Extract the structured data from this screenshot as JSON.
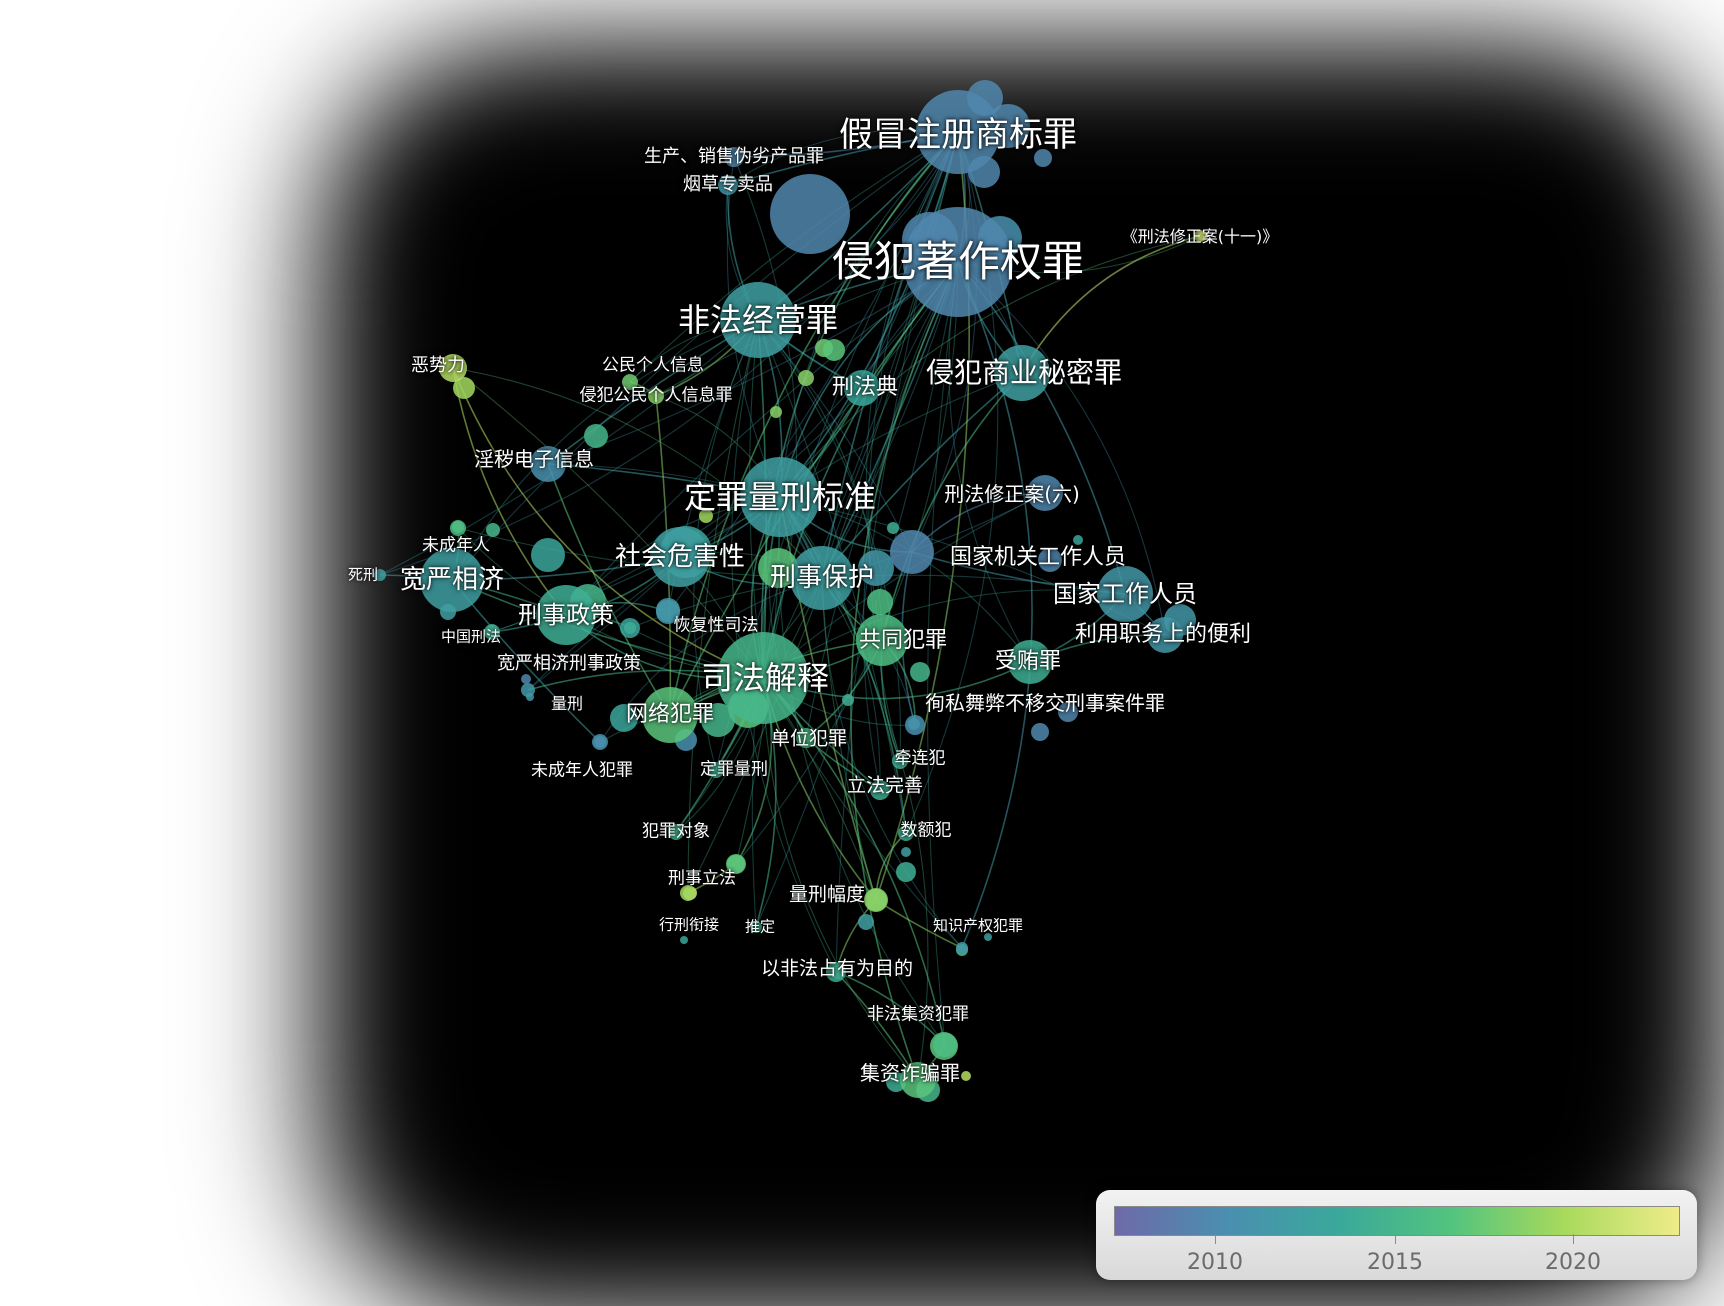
{
  "nodes": [
    {
      "id": "jiamao",
      "label": "假冒注册商标罪",
      "year": 2008,
      "r": 42
    },
    {
      "id": "zuozuoquan",
      "label": "侵犯著作权罪",
      "year": 2008,
      "r": 55
    },
    {
      "id": "feifajingying",
      "label": "非法经营罪",
      "year": 2011,
      "r": 38
    },
    {
      "id": "shangyemimi",
      "label": "侵犯商业秘密罪",
      "year": 2011,
      "r": 28
    },
    {
      "id": "dingzuiliangxing",
      "label": "定罪量刑标准",
      "year": 2011,
      "r": 40
    },
    {
      "id": "sifajieshi",
      "label": "司法解释",
      "year": 2014,
      "r": 46
    },
    {
      "id": "xingshibaohu",
      "label": "刑事保护",
      "year": 2011,
      "r": 32
    },
    {
      "id": "shehuiweihai",
      "label": "社会危害性",
      "year": 2011,
      "r": 30
    },
    {
      "id": "kuanyanxiangji",
      "label": "宽严相济",
      "year": 2011,
      "r": 32
    },
    {
      "id": "xingshizhengce",
      "label": "刑事政策",
      "year": 2013,
      "r": 30
    },
    {
      "id": "wangluofanzui",
      "label": "网络犯罪",
      "year": 2016,
      "r": 28
    },
    {
      "id": "gongtongfanzui",
      "label": "共同犯罪",
      "year": 2015,
      "r": 26
    },
    {
      "id": "shouhuizui",
      "label": "受贿罪",
      "year": 2013,
      "r": 22
    },
    {
      "id": "guojiagongzuo",
      "label": "国家工作人员",
      "year": 2010,
      "r": 28
    },
    {
      "id": "guojiajiguan",
      "label": "国家机关工作人员",
      "year": 2008,
      "r": 22
    },
    {
      "id": "liyongzhiwu",
      "label": "利用职务上的便利",
      "year": 2010,
      "r": 18
    },
    {
      "id": "xingfaxiuzheng6",
      "label": "刑法修正案(六)",
      "year": 2008,
      "r": 18
    },
    {
      "id": "xingfadian",
      "label": "刑法典",
      "year": 2012,
      "r": 18
    },
    {
      "id": "yinhui",
      "label": "淫秽电子信息",
      "year": 2009,
      "r": 18
    },
    {
      "id": "eshili",
      "label": "恶势力",
      "year": 2020,
      "r": 14
    },
    {
      "id": "gongmingeren",
      "label": "公民个人信息",
      "year": 2017,
      "r": 8
    },
    {
      "id": "qinfangeren",
      "label": "侵犯公民个人信息罪",
      "year": 2018,
      "r": 8
    },
    {
      "id": "shengchanxiaoshou",
      "label": "生产、销售伪劣产品罪",
      "year": 2008,
      "r": 10
    },
    {
      "id": "yancao",
      "label": "烟草专卖品",
      "year": 2010,
      "r": 10
    },
    {
      "id": "xiuzheng11",
      "label": "《刑法修正案(十一)》",
      "year": 2021,
      "r": 6
    },
    {
      "id": "weichengnianren",
      "label": "未成年人",
      "year": 2015,
      "r": 8
    },
    {
      "id": "sixing",
      "label": "死刑",
      "year": 2011,
      "r": 6
    },
    {
      "id": "zhongguoxingfa",
      "label": "中国刑法",
      "year": 2013,
      "r": 8
    },
    {
      "id": "kuanyanzhengce",
      "label": "宽严相济刑事政策",
      "year": 2012,
      "r": 10
    },
    {
      "id": "huifuxing",
      "label": "恢复性司法",
      "year": 2010,
      "r": 12
    },
    {
      "id": "liangxing",
      "label": "量刑",
      "year": 2010,
      "r": 7
    },
    {
      "id": "weichengnianfanzui",
      "label": "未成年人犯罪",
      "year": 2009,
      "r": 8
    },
    {
      "id": "dingzuiliangxing2",
      "label": "定罪量刑",
      "year": 2013,
      "r": 8
    },
    {
      "id": "danweifanzui",
      "label": "单位犯罪",
      "year": 2015,
      "r": 10
    },
    {
      "id": "xunsi",
      "label": "徇私舞弊不移交刑事案件罪",
      "year": 2009,
      "r": 10
    },
    {
      "id": "qianlianfan",
      "label": "牵连犯",
      "year": 2013,
      "r": 8
    },
    {
      "id": "lifawanshan",
      "label": "立法完善",
      "year": 2013,
      "r": 10
    },
    {
      "id": "fanzuiduixiang",
      "label": "犯罪对象",
      "year": 2014,
      "r": 8
    },
    {
      "id": "shuefan",
      "label": "数额犯",
      "year": 2013,
      "r": 8
    },
    {
      "id": "xingshilifa",
      "label": "刑事立法",
      "year": 2016,
      "r": 10
    },
    {
      "id": "liangxingfudu",
      "label": "量刑幅度",
      "year": 2018,
      "r": 12
    },
    {
      "id": "xingxingxianjie",
      "label": "行刑衔接",
      "year": 2019,
      "r": 8
    },
    {
      "id": "tuiding",
      "label": "推定",
      "year": 2013,
      "r": 6
    },
    {
      "id": "zhishichanquan",
      "label": "知识产权犯罪",
      "year": 2010,
      "r": 6
    },
    {
      "id": "yifeifa",
      "label": "以非法占有为目的",
      "year": 2013,
      "r": 10
    },
    {
      "id": "feifajizi",
      "label": "非法集资犯罪",
      "year": 2015,
      "r": 12
    },
    {
      "id": "jizizhapian",
      "label": "集资诈骗罪",
      "year": 2016,
      "r": 18
    }
  ],
  "edges": [
    [
      "jiamao",
      "zuozuoquan"
    ],
    [
      "jiamao",
      "feifajingying"
    ],
    [
      "zuozuoquan",
      "feifajingying"
    ],
    [
      "zuozuoquan",
      "shangyemimi"
    ],
    [
      "zuozuoquan",
      "dingzuiliangxing"
    ],
    [
      "jiamao",
      "dingzuiliangxing"
    ],
    [
      "zuozuoquan",
      "xingshibaohu"
    ],
    [
      "jiamao",
      "xingshibaohu"
    ],
    [
      "zuozuoquan",
      "sifajieshi"
    ],
    [
      "jiamao",
      "sifajieshi"
    ],
    [
      "feifajingying",
      "dingzuiliangxing"
    ],
    [
      "feifajingying",
      "sifajieshi"
    ],
    [
      "shangyemimi",
      "xingshibaohu"
    ],
    [
      "shangyemimi",
      "gongtongfanzui"
    ],
    [
      "dingzuiliangxing",
      "sifajieshi"
    ],
    [
      "dingzuiliangxing",
      "shehuiweihai"
    ],
    [
      "dingzuiliangxing",
      "xingshibaohu"
    ],
    [
      "sifajieshi",
      "wangluofanzui"
    ],
    [
      "sifajieshi",
      "gongtongfanzui"
    ],
    [
      "sifajieshi",
      "shouhuizui"
    ],
    [
      "sifajieshi",
      "danweifanzui"
    ],
    [
      "kuanyanxiangji",
      "xingshizhengce"
    ],
    [
      "kuanyanxiangji",
      "shehuiweihai"
    ],
    [
      "xingshizhengce",
      "shehuiweihai"
    ],
    [
      "xingshizhengce",
      "sifajieshi"
    ],
    [
      "guojiagongzuo",
      "shouhuizui"
    ],
    [
      "guojiagongzuo",
      "liyongzhiwu"
    ],
    [
      "guojiajiguan",
      "guojiagongzuo"
    ],
    [
      "guojiajiguan",
      "xunsi"
    ],
    [
      "xingfaxiuzheng6",
      "guojiajiguan"
    ],
    [
      "xingfadian",
      "dingzuiliangxing"
    ],
    [
      "yinhui",
      "dingzuiliangxing"
    ],
    [
      "yinhui",
      "wangluofanzui"
    ],
    [
      "eshili",
      "xingshizhengce"
    ],
    [
      "eshili",
      "sifajieshi"
    ],
    [
      "gongmingeren",
      "qinfangeren"
    ],
    [
      "qinfangeren",
      "wangluofanzui"
    ],
    [
      "shengchanxiaoshou",
      "jiamao"
    ],
    [
      "yancao",
      "feifajingying"
    ],
    [
      "xiuzheng11",
      "shangyemimi"
    ],
    [
      "weichengnianren",
      "kuanyanxiangji"
    ],
    [
      "sixing",
      "kuanyanxiangji"
    ],
    [
      "zhongguoxingfa",
      "xingshizhengce"
    ],
    [
      "kuanyanzhengce",
      "xingshizhengce"
    ],
    [
      "huifuxing",
      "xingshizhengce"
    ],
    [
      "liangxing",
      "sifajieshi"
    ],
    [
      "weichengnianfanzui",
      "kuanyanxiangji"
    ],
    [
      "dingzuiliangxing2",
      "sifajieshi"
    ],
    [
      "danweifanzui",
      "gongtongfanzui"
    ],
    [
      "xunsi",
      "gongtongfanzui"
    ],
    [
      "qianlianfan",
      "gongtongfanzui"
    ],
    [
      "lifawanshan",
      "sifajieshi"
    ],
    [
      "fanzuiduixiang",
      "sifajieshi"
    ],
    [
      "shuefan",
      "dingzuiliangxing"
    ],
    [
      "xingshilifa",
      "sifajieshi"
    ],
    [
      "liangxingfudu",
      "sifajieshi"
    ],
    [
      "liangxingfudu",
      "dingzuiliangxing"
    ],
    [
      "xingxingxianjie",
      "xingshilifa"
    ],
    [
      "tuiding",
      "sifajieshi"
    ],
    [
      "zhishichanquan",
      "zuozuoquan"
    ],
    [
      "yifeifa",
      "feifajizi"
    ],
    [
      "feifajizi",
      "jizizhapian"
    ],
    [
      "jizizhapian",
      "yifeifa"
    ],
    [
      "liangxingfudu",
      "yifeifa"
    ],
    [
      "shuefan",
      "liangxingfudu"
    ],
    [
      "zuozuoquan",
      "guojiagongzuo"
    ],
    [
      "jiamao",
      "shangyemimi"
    ],
    [
      "feifajingying",
      "xingfadian"
    ],
    [
      "xingshibaohu",
      "gongtongfanzui"
    ],
    [
      "shehuiweihai",
      "xingshibaohu"
    ],
    [
      "wangluofanzui",
      "gongtongfanzui"
    ],
    [
      "yinhui",
      "feifajingying"
    ],
    [
      "zuozuoquan",
      "wangluofanzui"
    ],
    [
      "jiamao",
      "wangluofanzui"
    ],
    [
      "dingzuiliangxing",
      "guojiajiguan"
    ],
    [
      "shouhuizui",
      "liyongzhiwu"
    ],
    [
      "yancao",
      "jiamao"
    ],
    [
      "kuanyanxiangji",
      "sifajieshi"
    ],
    [
      "feifajizi",
      "sifajieshi"
    ],
    [
      "zuozuoquan",
      "jizizhapian"
    ],
    [
      "jiamao",
      "liangxingfudu"
    ],
    [
      "zhishichanquan",
      "liangxingfudu"
    ],
    [
      "danweifanzui",
      "lifawanshan"
    ],
    [
      "qinfangeren",
      "feifajingying"
    ]
  ],
  "legend": {
    "ticks": [
      "2010",
      "2015",
      "2020"
    ],
    "year_min": 2005.2,
    "year_max": 2022.8,
    "tick_years": [
      2010,
      2015,
      2020
    ],
    "colors": [
      "#6e6aa8",
      "#4a8fb0",
      "#3aa99a",
      "#54c47e",
      "#a9da5c",
      "#efec8a"
    ]
  }
}
